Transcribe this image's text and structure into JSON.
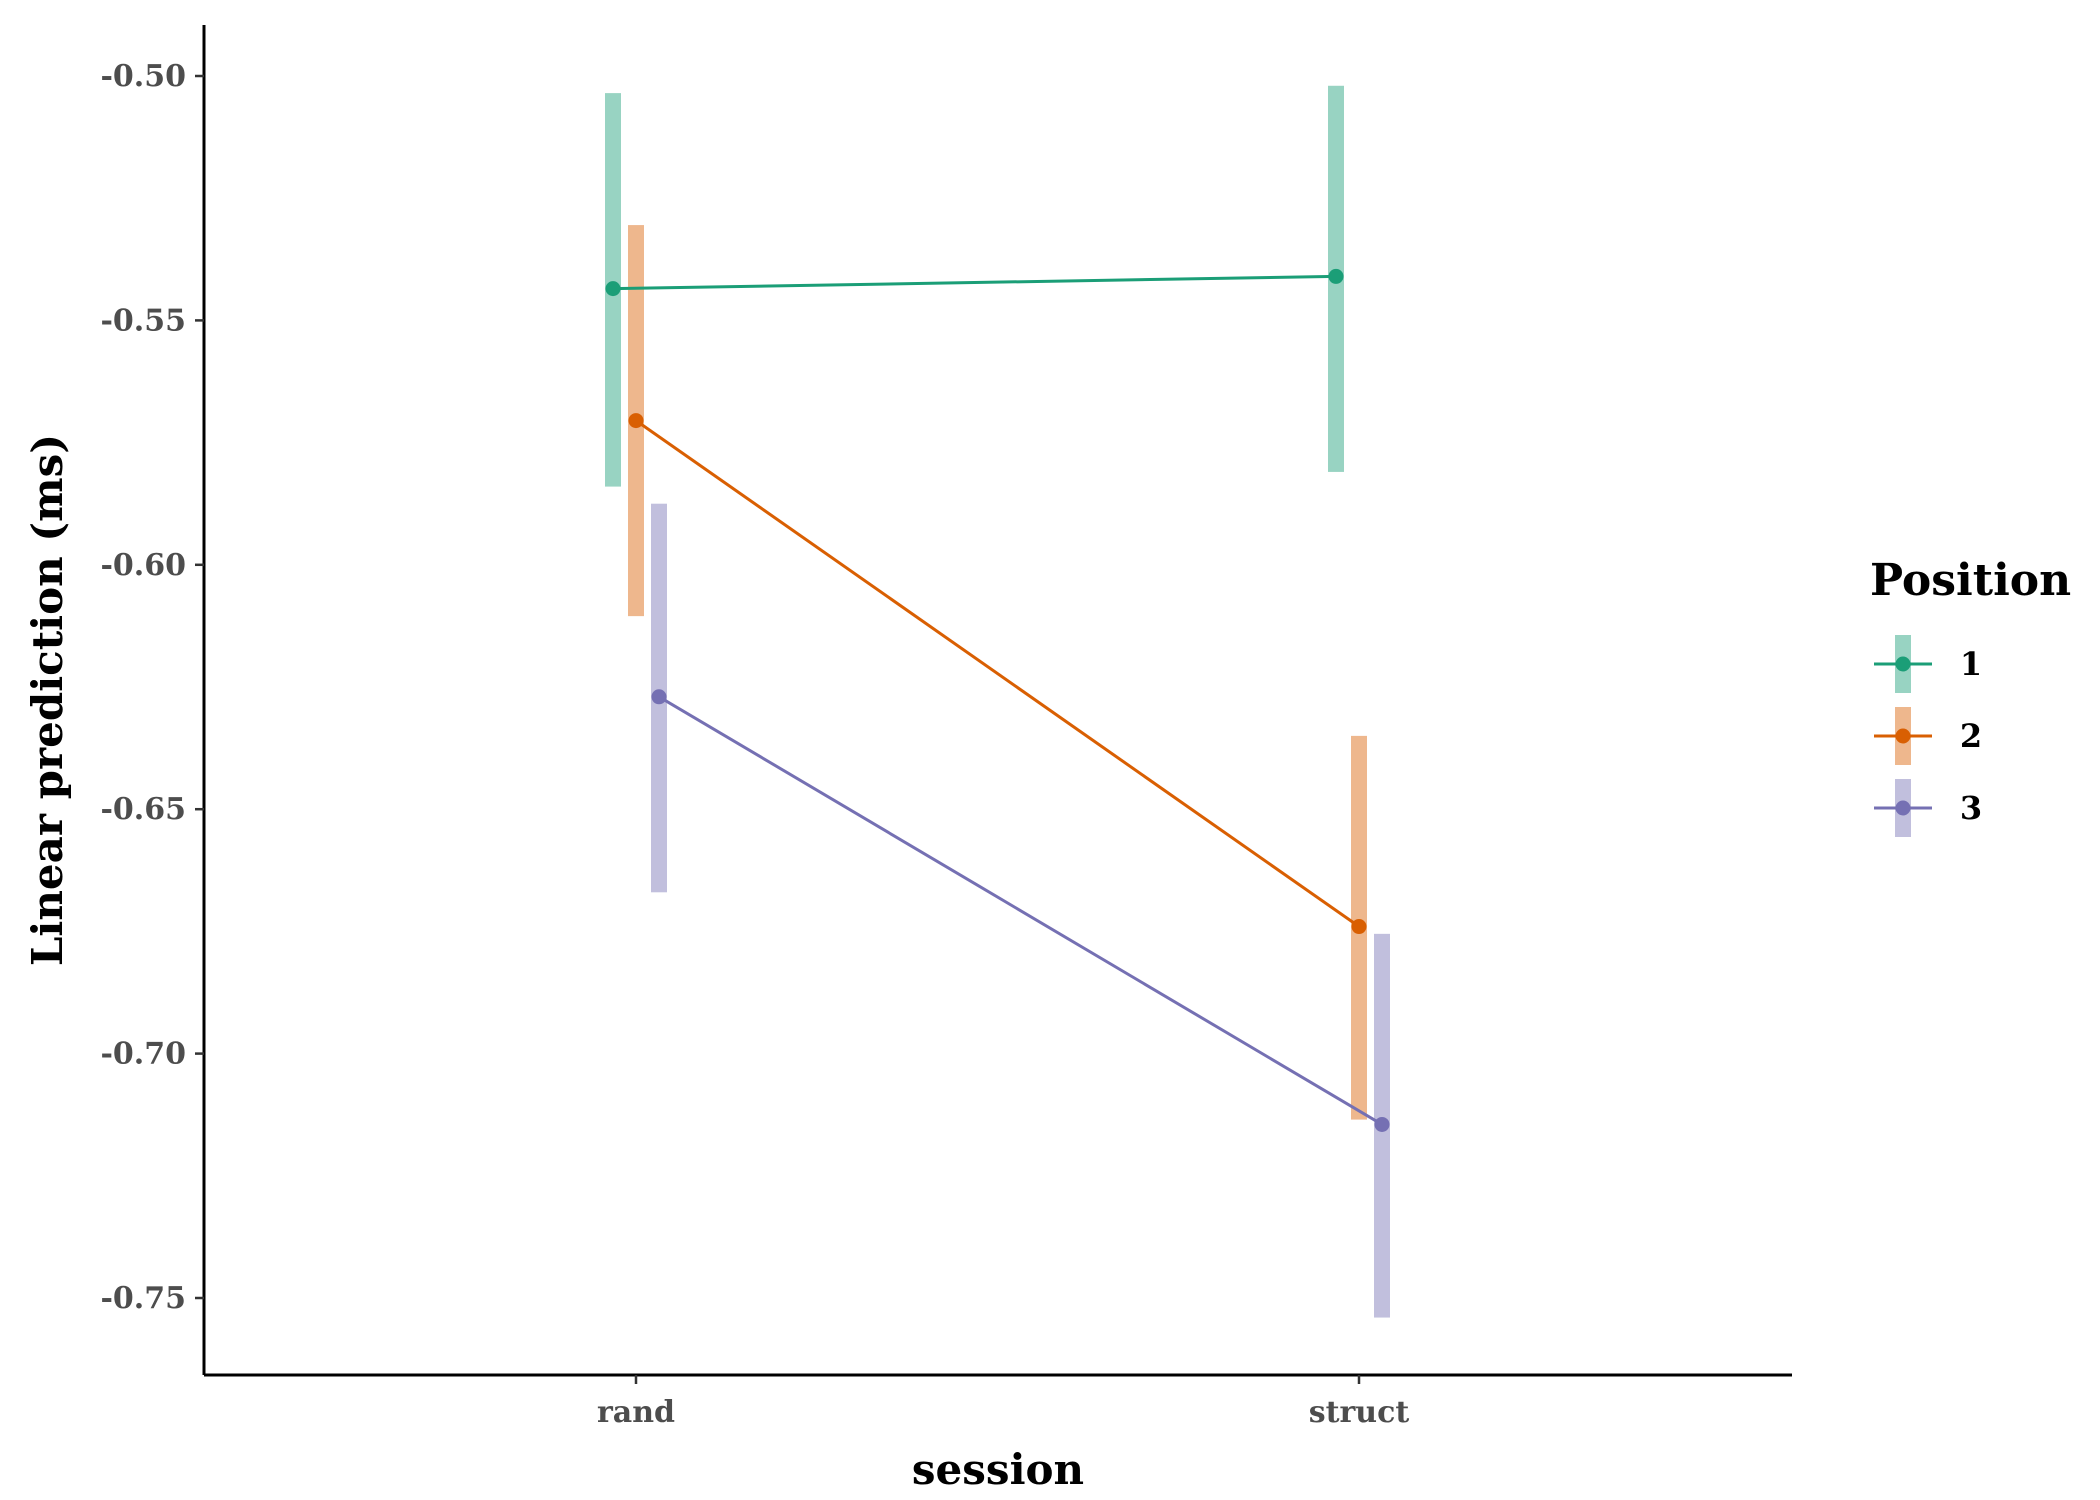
{
  "chart_data": {
    "type": "line",
    "xlabel": "session",
    "ylabel": "Linear prediction (ms)",
    "categories": [
      "rand",
      "struct"
    ],
    "ylim": [
      -0.765,
      -0.49
    ],
    "yticks": [
      -0.5,
      -0.55,
      -0.6,
      -0.65,
      -0.7,
      -0.75
    ],
    "ytick_labels": [
      "-0.50",
      "-0.55",
      "-0.60",
      "-0.65",
      "-0.70",
      "-0.75"
    ],
    "grid": false,
    "legend": {
      "title": "Position",
      "placement": "right"
    },
    "series": [
      {
        "name": "1",
        "color": "#1b9e77",
        "values": [
          -0.5435,
          -0.541
        ],
        "lower": [
          -0.584,
          -0.581
        ],
        "upper": [
          -0.5035,
          -0.502
        ]
      },
      {
        "name": "2",
        "color": "#d95f02",
        "values": [
          -0.5705,
          -0.674
        ],
        "lower": [
          -0.6105,
          -0.7135
        ],
        "upper": [
          -0.5305,
          -0.635
        ]
      },
      {
        "name": "3",
        "color": "#7570b3",
        "values": [
          -0.627,
          -0.7145
        ],
        "lower": [
          -0.667,
          -0.754
        ],
        "upper": [
          -0.5875,
          -0.6755
        ]
      }
    ]
  }
}
